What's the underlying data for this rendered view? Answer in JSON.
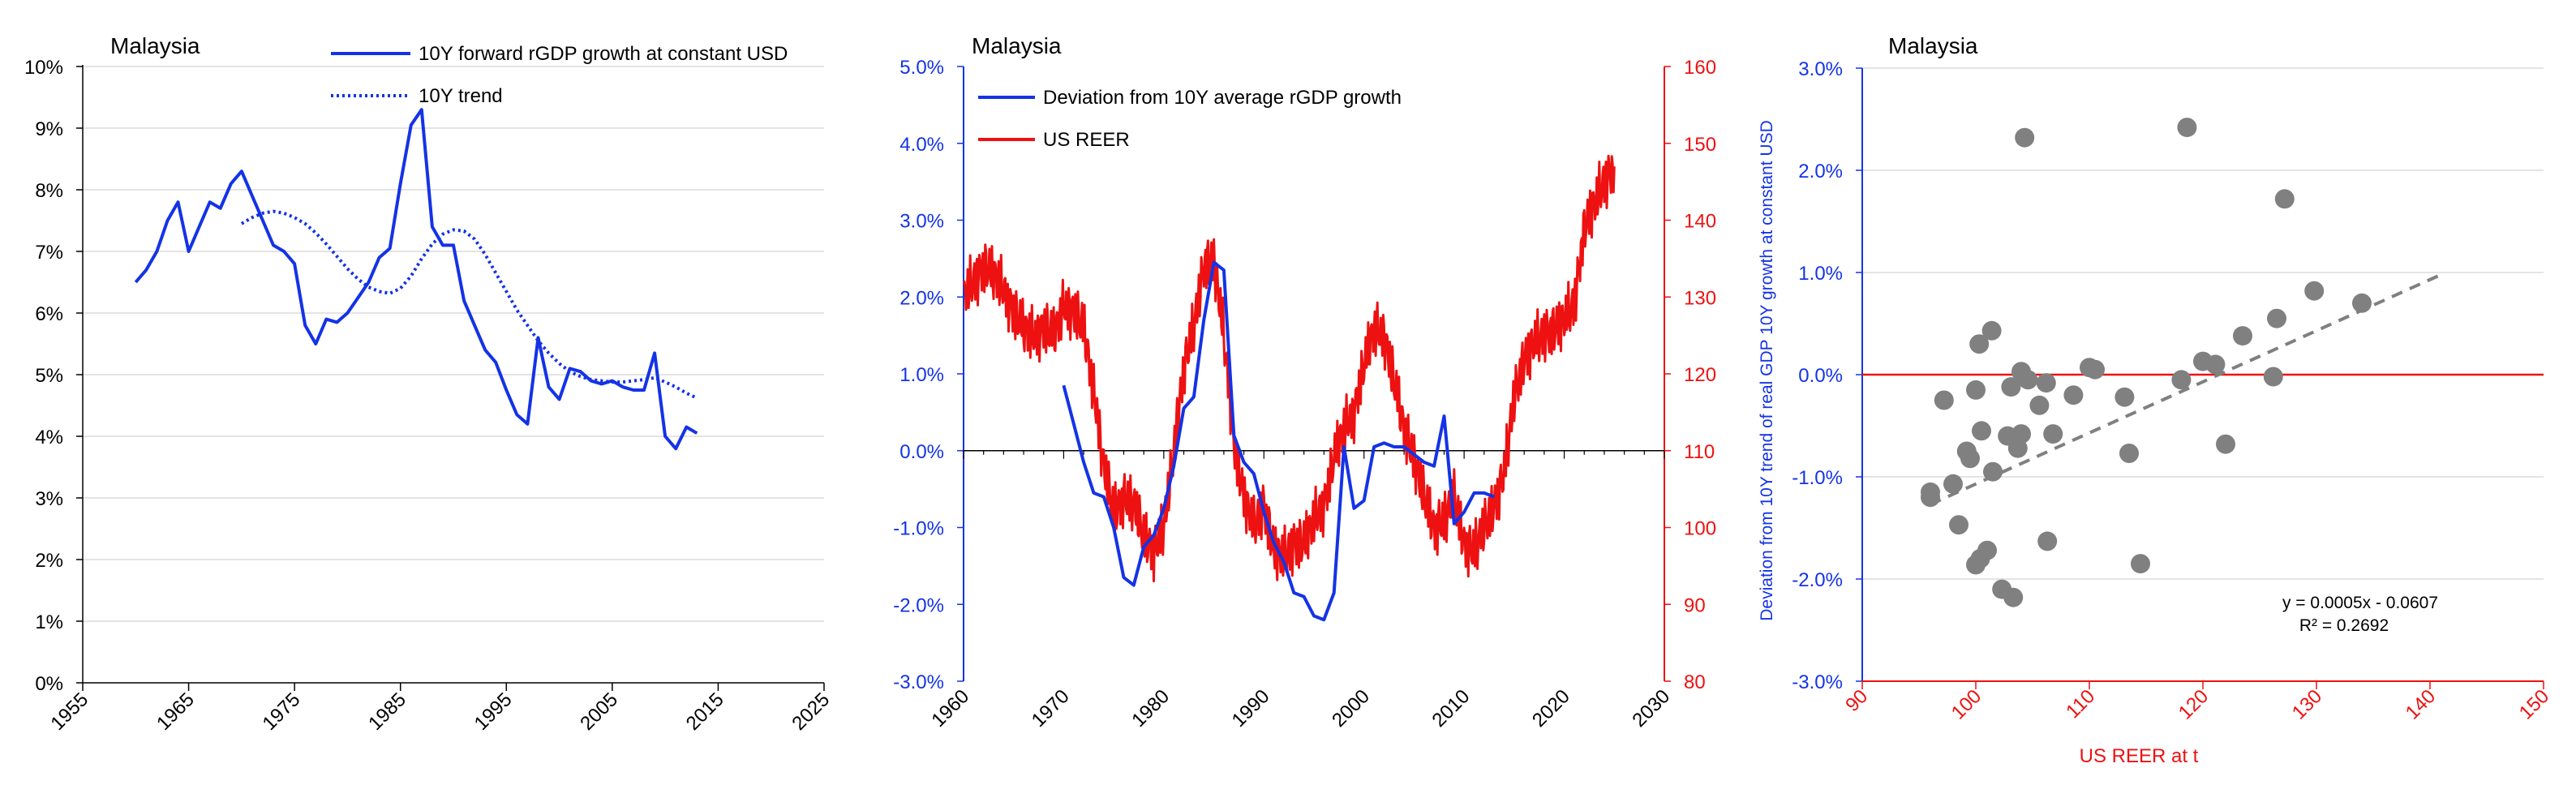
{
  "chart_data": [
    {
      "type": "line",
      "title": "Malaysia",
      "xlim": [
        1955,
        2025
      ],
      "xticks": [
        "1955",
        "1965",
        "1975",
        "1985",
        "1995",
        "2005",
        "2015",
        "2025"
      ],
      "ylim": [
        0,
        10
      ],
      "yticks": [
        "0%",
        "1%",
        "2%",
        "3%",
        "4%",
        "5%",
        "6%",
        "7%",
        "8%",
        "9%",
        "10%"
      ],
      "colors": {
        "main": "#1433e6"
      },
      "series": [
        {
          "name": "10Y forward rGDP growth at constant USD",
          "style": "solid",
          "x": [
            1960,
            1961,
            1962,
            1963,
            1964,
            1965,
            1966,
            1967,
            1968,
            1969,
            1970,
            1971,
            1972,
            1973,
            1974,
            1975,
            1976,
            1977,
            1978,
            1979,
            1980,
            1981,
            1982,
            1983,
            1984,
            1985,
            1986,
            1987,
            1988,
            1989,
            1990,
            1991,
            1992,
            1993,
            1994,
            1995,
            1996,
            1997,
            1998,
            1999,
            2000,
            2001,
            2002,
            2003,
            2004,
            2005,
            2006,
            2007,
            2008,
            2009,
            2010,
            2011,
            2012,
            2013
          ],
          "y": [
            6.5,
            6.7,
            7.0,
            7.5,
            7.8,
            7.0,
            7.4,
            7.8,
            7.7,
            8.1,
            8.3,
            7.9,
            7.5,
            7.1,
            7.0,
            6.8,
            5.8,
            5.5,
            5.9,
            5.85,
            6.0,
            6.25,
            6.5,
            6.9,
            7.05,
            8.1,
            9.05,
            9.3,
            7.4,
            7.1,
            7.1,
            6.2,
            5.8,
            5.4,
            5.2,
            4.75,
            4.35,
            4.2,
            5.6,
            4.8,
            4.6,
            5.1,
            5.05,
            4.9,
            4.85,
            4.9,
            4.8,
            4.75,
            4.75,
            5.35,
            4.0,
            3.8,
            4.15,
            4.05
          ]
        },
        {
          "name": "10Y trend",
          "style": "dotted",
          "x": [
            1970,
            1971,
            1972,
            1973,
            1974,
            1975,
            1976,
            1977,
            1978,
            1979,
            1980,
            1981,
            1982,
            1983,
            1984,
            1985,
            1986,
            1987,
            1988,
            1989,
            1990,
            1991,
            1992,
            1993,
            1994,
            1995,
            1996,
            1997,
            1998,
            1999,
            2000,
            2001,
            2002,
            2003,
            2004,
            2005,
            2006,
            2007,
            2008,
            2009,
            2010,
            2011,
            2012,
            2013
          ],
          "y": [
            7.45,
            7.55,
            7.62,
            7.65,
            7.62,
            7.55,
            7.45,
            7.3,
            7.12,
            6.92,
            6.72,
            6.55,
            6.42,
            6.35,
            6.32,
            6.4,
            6.6,
            6.88,
            7.12,
            7.28,
            7.35,
            7.33,
            7.2,
            6.95,
            6.65,
            6.35,
            6.05,
            5.8,
            5.55,
            5.35,
            5.18,
            5.05,
            4.97,
            4.92,
            4.9,
            4.88,
            4.88,
            4.9,
            4.92,
            4.95,
            4.88,
            4.8,
            4.7,
            4.62
          ]
        }
      ]
    },
    {
      "type": "line",
      "title": "Malaysia",
      "xlim": [
        1960,
        2030
      ],
      "xticks": [
        "1960",
        "1970",
        "1980",
        "1990",
        "2000",
        "2010",
        "2020",
        "2030"
      ],
      "ylim": [
        -3,
        5
      ],
      "yticks": [
        "-3.0%",
        "-2.0%",
        "-1.0%",
        "0.0%",
        "1.0%",
        "2.0%",
        "3.0%",
        "4.0%",
        "5.0%"
      ],
      "y2lim": [
        80,
        160
      ],
      "y2ticks": [
        "80",
        "90",
        "100",
        "110",
        "120",
        "130",
        "140",
        "150",
        "160"
      ],
      "colors": {
        "blue": "#1433e6",
        "red": "#ee1111"
      },
      "series": [
        {
          "name": "Deviation from 10Y average rGDP growth",
          "axis": "left",
          "x": [
            1970,
            1971,
            1972,
            1973,
            1974,
            1975,
            1976,
            1977,
            1978,
            1979,
            1980,
            1981,
            1982,
            1983,
            1984,
            1985,
            1986,
            1987,
            1988,
            1989,
            1990,
            1991,
            1992,
            1993,
            1994,
            1995,
            1996,
            1997,
            1998,
            1999,
            2000,
            2001,
            2002,
            2003,
            2004,
            2005,
            2006,
            2007,
            2008,
            2009,
            2010,
            2011,
            2012,
            2013
          ],
          "y": [
            0.85,
            0.35,
            -0.15,
            -0.55,
            -0.6,
            -1.0,
            -1.65,
            -1.75,
            -1.25,
            -1.1,
            -0.75,
            -0.2,
            0.55,
            0.7,
            1.7,
            2.45,
            2.35,
            0.2,
            -0.15,
            -0.3,
            -0.8,
            -1.2,
            -1.45,
            -1.85,
            -1.9,
            -2.15,
            -2.2,
            -1.85,
            0.05,
            -0.75,
            -0.65,
            0.05,
            0.1,
            0.05,
            0.05,
            -0.05,
            -0.15,
            -0.2,
            0.45,
            -0.95,
            -0.8,
            -0.55,
            -0.55,
            -0.6
          ]
        },
        {
          "name": "US REER",
          "axis": "right",
          "x": [
            1960,
            1961,
            1962,
            1963,
            1964,
            1965,
            1966,
            1967,
            1968,
            1969,
            1970,
            1971,
            1972,
            1973,
            1974,
            1975,
            1976,
            1977,
            1978,
            1979,
            1980,
            1981,
            1982,
            1983,
            1984,
            1985,
            1986,
            1987,
            1988,
            1989,
            1990,
            1991,
            1992,
            1993,
            1994,
            1995,
            1996,
            1997,
            1998,
            1999,
            2000,
            2001,
            2002,
            2003,
            2004,
            2005,
            2006,
            2007,
            2008,
            2009,
            2010,
            2011,
            2012,
            2013,
            2014,
            2015,
            2016,
            2017,
            2018,
            2019,
            2020,
            2021,
            2022,
            2023,
            2024,
            2025
          ],
          "y": [
            130,
            132,
            134,
            133,
            131,
            128,
            126,
            125,
            126,
            125,
            129,
            128,
            126,
            118,
            108,
            102,
            104,
            103,
            99,
            97,
            100,
            110,
            121,
            126,
            134,
            135,
            125,
            111,
            104,
            100,
            103,
            97,
            96,
            98,
            98,
            101,
            103,
            109,
            113,
            115,
            121,
            126,
            125,
            119,
            113,
            109,
            104,
            100,
            101,
            104,
            98,
            97,
            100,
            103,
            107,
            117,
            122,
            124,
            125,
            126,
            127,
            129,
            139,
            142,
            145,
            147
          ]
        }
      ]
    },
    {
      "type": "scatter",
      "title": "Malaysia",
      "xlabel": "US REER at t",
      "ylabel": "Deviation from 10Y trend of real GDP 10Y growth at constant USD",
      "xlim": [
        90,
        150
      ],
      "xticks": [
        "90",
        "100",
        "110",
        "120",
        "130",
        "140",
        "150"
      ],
      "ylim": [
        -3,
        3
      ],
      "yticks": [
        "-3.0%",
        "-2.0%",
        "-1.0%",
        "0.0%",
        "1.0%",
        "2.0%",
        "3.0%"
      ],
      "colors": {
        "point": "#808080",
        "trend": "#808080",
        "zero": "#ee1111",
        "xaxis": "#ee1111",
        "yaxis": "#1433e6"
      },
      "trendline": {
        "slope": 0.0005,
        "intercept": -0.0607,
        "x": [
          96,
          141
        ],
        "label": "y = 0.0005x - 0.0607",
        "r2_label": "R² = 0.2692"
      },
      "points": [
        {
          "x": 96.0,
          "y": -1.2
        },
        {
          "x": 96.0,
          "y": -1.15
        },
        {
          "x": 97.2,
          "y": -0.25
        },
        {
          "x": 98.0,
          "y": -1.07
        },
        {
          "x": 98.5,
          "y": -1.47
        },
        {
          "x": 99.2,
          "y": -0.75
        },
        {
          "x": 99.5,
          "y": -0.82
        },
        {
          "x": 100.0,
          "y": -1.86
        },
        {
          "x": 100.0,
          "y": -0.15
        },
        {
          "x": 100.3,
          "y": 0.3
        },
        {
          "x": 100.4,
          "y": -1.8
        },
        {
          "x": 100.5,
          "y": -0.55
        },
        {
          "x": 101.0,
          "y": -1.72
        },
        {
          "x": 101.4,
          "y": 0.43
        },
        {
          "x": 101.5,
          "y": -0.95
        },
        {
          "x": 102.3,
          "y": -2.1
        },
        {
          "x": 102.8,
          "y": -0.6
        },
        {
          "x": 103.1,
          "y": -0.12
        },
        {
          "x": 103.3,
          "y": -2.18
        },
        {
          "x": 103.7,
          "y": -0.72
        },
        {
          "x": 104.0,
          "y": -0.58
        },
        {
          "x": 104.0,
          "y": 0.03
        },
        {
          "x": 104.3,
          "y": 2.32
        },
        {
          "x": 104.6,
          "y": -0.05
        },
        {
          "x": 105.6,
          "y": -0.3
        },
        {
          "x": 106.2,
          "y": -0.08
        },
        {
          "x": 106.3,
          "y": -1.63
        },
        {
          "x": 106.8,
          "y": -0.58
        },
        {
          "x": 108.6,
          "y": -0.2
        },
        {
          "x": 110.0,
          "y": 0.07
        },
        {
          "x": 110.5,
          "y": 0.05
        },
        {
          "x": 113.1,
          "y": -0.22
        },
        {
          "x": 113.5,
          "y": -0.77
        },
        {
          "x": 114.5,
          "y": -1.85
        },
        {
          "x": 118.1,
          "y": -0.05
        },
        {
          "x": 118.6,
          "y": 2.42
        },
        {
          "x": 120.0,
          "y": 0.13
        },
        {
          "x": 121.1,
          "y": 0.1
        },
        {
          "x": 122.0,
          "y": -0.68
        },
        {
          "x": 123.5,
          "y": 0.38
        },
        {
          "x": 126.2,
          "y": -0.02
        },
        {
          "x": 126.5,
          "y": 0.55
        },
        {
          "x": 127.2,
          "y": 1.72
        },
        {
          "x": 129.8,
          "y": 0.82
        },
        {
          "x": 134.0,
          "y": 0.7
        }
      ]
    }
  ]
}
